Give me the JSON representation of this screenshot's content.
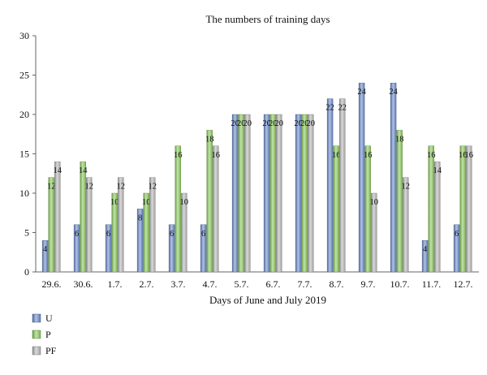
{
  "chart_data": {
    "type": "bar",
    "title": "The numbers of training days",
    "xlabel": "Days of June and July 2019",
    "ylabel": "",
    "ylim": [
      0,
      30
    ],
    "yticks": [
      0,
      5,
      10,
      15,
      20,
      25,
      30
    ],
    "grid": false,
    "legend_position": "bottom-left",
    "categories": [
      "29.6.",
      "30.6.",
      "1.7.",
      "2.7.",
      "3.7.",
      "4.7.",
      "5.7.",
      "6.7.",
      "7.7.",
      "8.7.",
      "9.7.",
      "10.7.",
      "11.7.",
      "12.7."
    ],
    "series": [
      {
        "name": "U",
        "color": "#6f8fcf",
        "values": [
          4,
          6,
          6,
          8,
          6,
          6,
          20,
          20,
          20,
          22,
          24,
          24,
          4,
          6
        ]
      },
      {
        "name": "P",
        "color": "#8fcf5f",
        "values": [
          12,
          14,
          10,
          10,
          16,
          18,
          20,
          20,
          20,
          16,
          16,
          18,
          16,
          16
        ]
      },
      {
        "name": "PF",
        "color": "#bcbcbc",
        "values": [
          14,
          12,
          12,
          12,
          10,
          16,
          20,
          20,
          20,
          22,
          10,
          12,
          14,
          16
        ]
      }
    ]
  }
}
